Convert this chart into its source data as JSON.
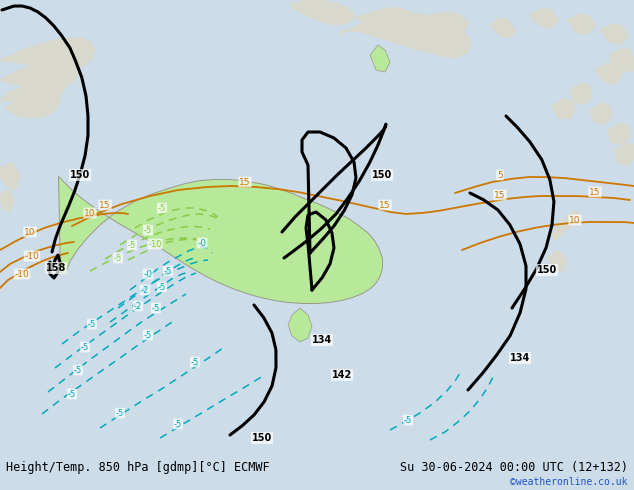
{
  "title_left": "Height/Temp. 850 hPa [gdmp][°C] ECMWF",
  "title_right": "Su 30-06-2024 00:00 UTC (12+132)",
  "credit": "©weatheronline.co.uk",
  "bg_ocean": "#ccdce8",
  "bg_land_gray": "#d8d8cc",
  "aus_green": "#b8e89a",
  "bar_bg": "#b8ccd8",
  "black": "#000000",
  "orange": "#cc7700",
  "lime": "#88cc44",
  "cyan": "#00aabb",
  "red": "#cc2200",
  "font_size": 8.5,
  "credit_size": 7.0
}
